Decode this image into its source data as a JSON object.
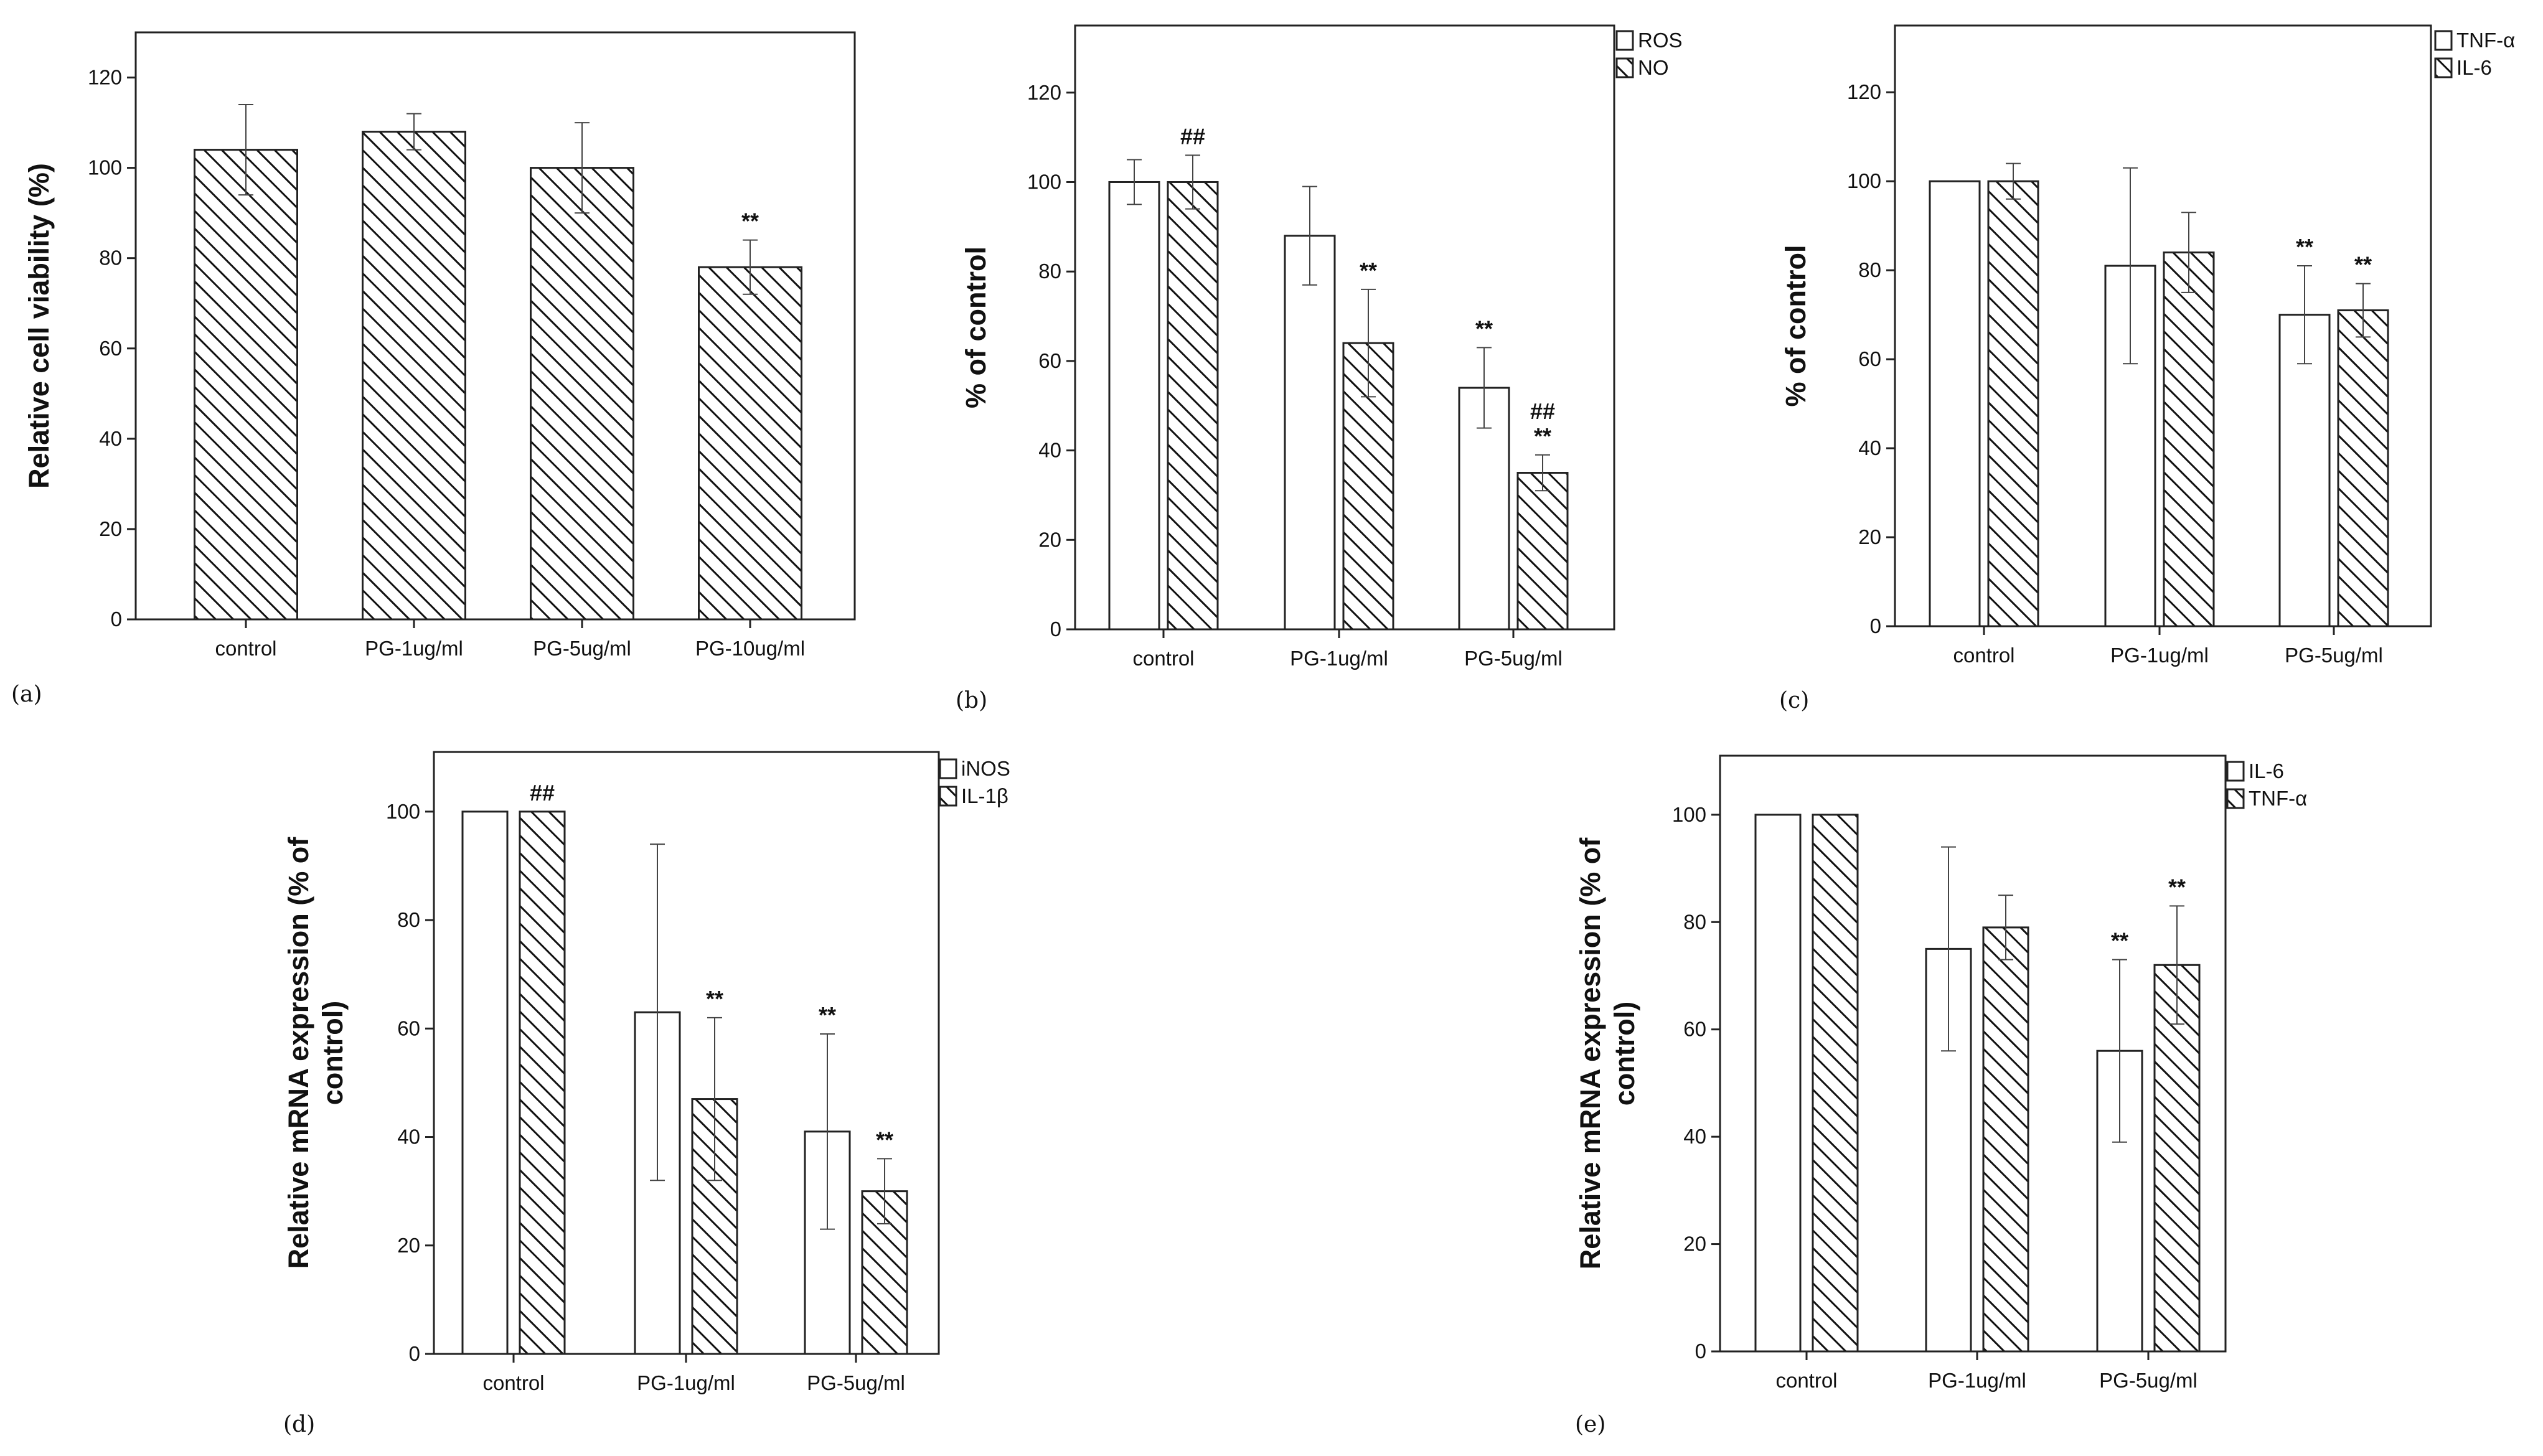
{
  "chart_data": [
    {
      "type": "bar",
      "panel_label": "(a)",
      "title": "",
      "xlabel": "",
      "ylabel": "Relative cell viability (%)",
      "ylim": [
        0,
        130
      ],
      "yticks": [
        0,
        20,
        40,
        60,
        80,
        100,
        120
      ],
      "categories": [
        "control",
        "PG-1ug/ml",
        "PG-5ug/ml",
        "PG-10ug/ml"
      ],
      "legend_position": "none",
      "series": [
        {
          "name": "viability",
          "pattern": "hatched",
          "values": [
            104,
            108,
            100,
            78
          ],
          "errors": [
            10,
            4,
            10,
            6
          ],
          "annotations": [
            "",
            "",
            "",
            "**"
          ]
        }
      ]
    },
    {
      "type": "bar",
      "panel_label": "(b)",
      "title": "",
      "xlabel": "",
      "ylabel": "% of control",
      "ylim": [
        0,
        135
      ],
      "yticks": [
        0,
        20,
        40,
        60,
        80,
        100,
        120
      ],
      "categories": [
        "control",
        "PG-1ug/ml",
        "PG-5ug/ml"
      ],
      "legend_position": "top-right",
      "series": [
        {
          "name": "ROS",
          "pattern": "open",
          "values": [
            100,
            88,
            54
          ],
          "errors": [
            5,
            11,
            9
          ],
          "annotations": [
            "",
            "",
            "**"
          ]
        },
        {
          "name": "NO",
          "pattern": "hatched",
          "values": [
            100,
            64,
            35
          ],
          "errors": [
            6,
            12,
            4
          ],
          "annotations": [
            "##",
            "**",
            "##\n**"
          ]
        }
      ]
    },
    {
      "type": "bar",
      "panel_label": "(c)",
      "title": "",
      "xlabel": "",
      "ylabel": "% of control",
      "ylim": [
        0,
        135
      ],
      "yticks": [
        0,
        20,
        40,
        60,
        80,
        100,
        120
      ],
      "categories": [
        "control",
        "PG-1ug/ml",
        "PG-5ug/ml"
      ],
      "legend_position": "top-right",
      "series": [
        {
          "name": "TNF-α",
          "pattern": "open",
          "values": [
            100,
            81,
            70
          ],
          "errors": [
            0,
            22,
            11
          ],
          "annotations": [
            "",
            "",
            "**"
          ]
        },
        {
          "name": "IL-6",
          "pattern": "hatched",
          "values": [
            100,
            84,
            71
          ],
          "errors": [
            4,
            9,
            6
          ],
          "annotations": [
            "",
            "",
            "**"
          ]
        }
      ]
    },
    {
      "type": "bar",
      "panel_label": "(d)",
      "title": "",
      "xlabel": "",
      "ylabel": "Relative mRNA expression (% of control)",
      "ylabel_lines": [
        "Relative mRNA expression (% of",
        "control)"
      ],
      "ylim": [
        0,
        111
      ],
      "yticks": [
        0,
        20,
        40,
        60,
        80,
        100
      ],
      "categories": [
        "control",
        "PG-1ug/ml",
        "PG-5ug/ml"
      ],
      "legend_position": "top-right",
      "series": [
        {
          "name": "iNOS",
          "pattern": "open",
          "values": [
            100,
            63,
            41
          ],
          "errors": [
            0,
            31,
            18
          ],
          "annotations": [
            "",
            "",
            "**"
          ]
        },
        {
          "name": "IL-1β",
          "pattern": "hatched",
          "values": [
            100,
            47,
            30
          ],
          "errors": [
            0,
            15,
            6
          ],
          "annotations": [
            "##",
            "**",
            "**"
          ]
        }
      ]
    },
    {
      "type": "bar",
      "panel_label": "(e)",
      "title": "",
      "xlabel": "",
      "ylabel": "Relative mRNA expression (% of control)",
      "ylabel_lines": [
        "Relative mRNA expression (% of",
        "control)"
      ],
      "ylim": [
        0,
        111
      ],
      "yticks": [
        0,
        20,
        40,
        60,
        80,
        100
      ],
      "categories": [
        "control",
        "PG-1ug/ml",
        "PG-5ug/ml"
      ],
      "legend_position": "top-right",
      "series": [
        {
          "name": "IL-6",
          "pattern": "open",
          "values": [
            100,
            75,
            56
          ],
          "errors": [
            0,
            19,
            17
          ],
          "annotations": [
            "",
            "",
            "**"
          ]
        },
        {
          "name": "TNF-α",
          "pattern": "hatched",
          "values": [
            100,
            79,
            72
          ],
          "errors": [
            0,
            6,
            11
          ],
          "annotations": [
            "",
            "",
            "**"
          ]
        }
      ]
    }
  ]
}
